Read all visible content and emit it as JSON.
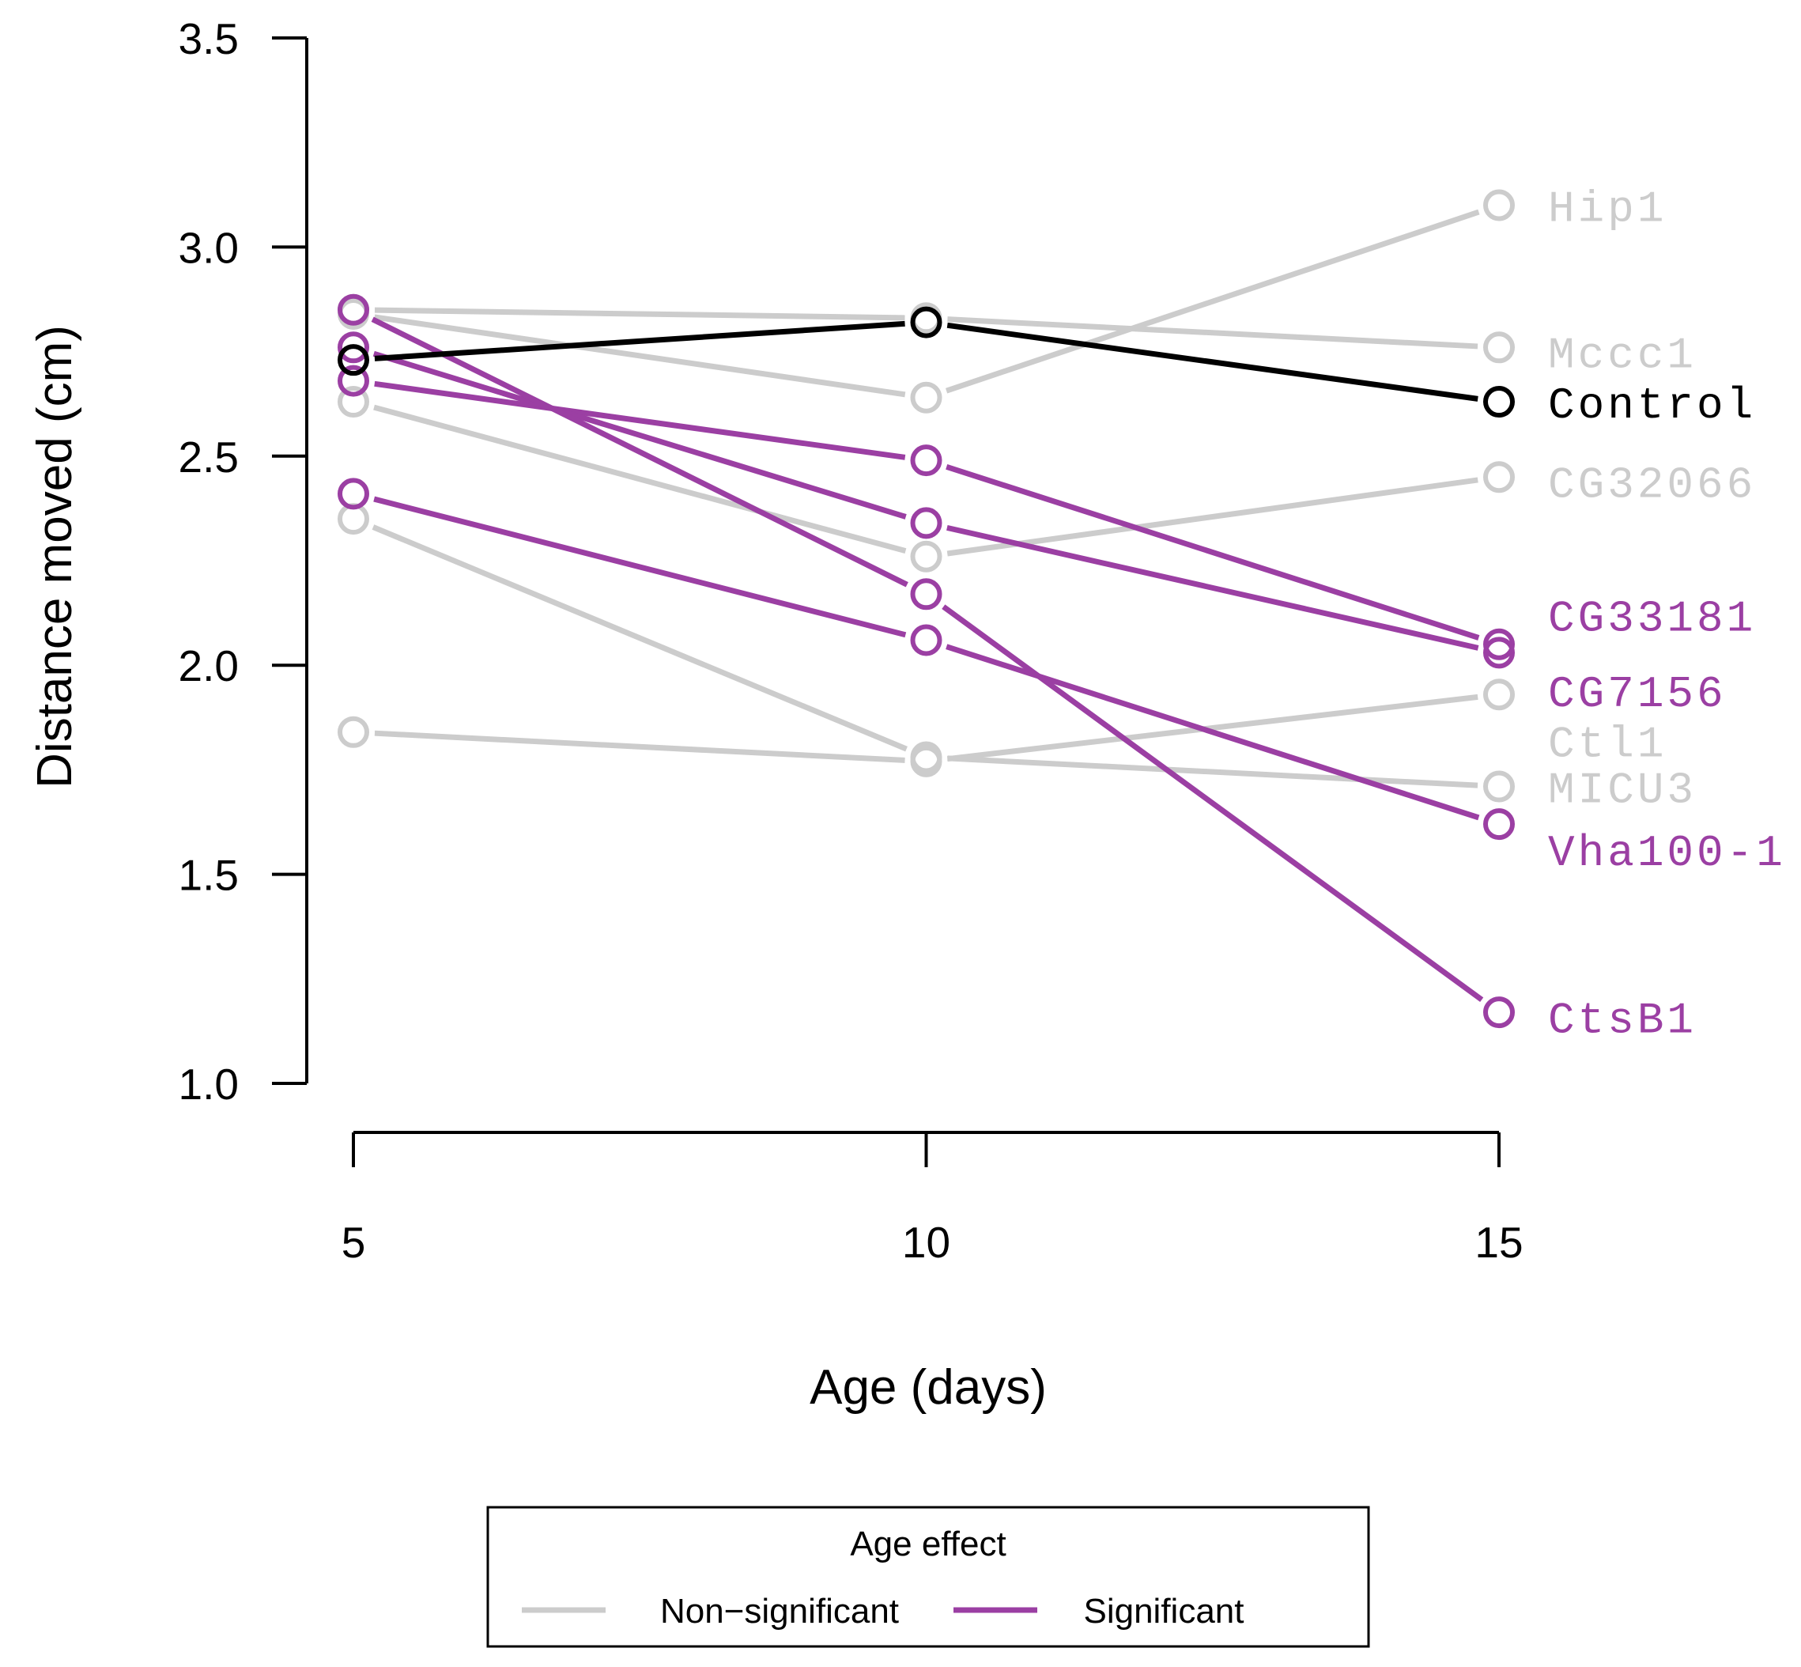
{
  "chart_data": {
    "type": "line",
    "title": "",
    "xlabel": "Age (days)",
    "ylabel": "Distance moved (cm)",
    "x": [
      5,
      10,
      15
    ],
    "x_tick_labels": [
      "5",
      "10",
      "15"
    ],
    "ylim": [
      1.0,
      3.5
    ],
    "y_ticks": [
      1.0,
      1.5,
      2.0,
      2.5,
      3.0,
      3.5
    ],
    "y_tick_labels": [
      "1.0",
      "1.5",
      "2.0",
      "2.5",
      "3.0",
      "3.5"
    ],
    "grid": false,
    "colors": {
      "non_significant": "#cccccc",
      "significant": "#9b3fa3",
      "control": "#000000"
    },
    "series": [
      {
        "name": "Hip1",
        "group": "non_significant",
        "values": [
          2.84,
          2.64,
          3.1
        ]
      },
      {
        "name": "Mccc1",
        "group": "non_significant",
        "values": [
          2.85,
          2.83,
          2.76
        ]
      },
      {
        "name": "CG32066",
        "group": "non_significant",
        "values": [
          2.63,
          2.26,
          2.45
        ]
      },
      {
        "name": "Ctl1",
        "group": "non_significant",
        "values": [
          1.84,
          1.77,
          1.93
        ]
      },
      {
        "name": "MICU3",
        "group": "non_significant",
        "values": [
          2.35,
          1.78,
          1.71
        ]
      },
      {
        "name": "CG33181",
        "group": "significant",
        "values": [
          2.68,
          2.49,
          2.05
        ]
      },
      {
        "name": "CG7156",
        "group": "significant",
        "values": [
          2.76,
          2.34,
          2.03
        ]
      },
      {
        "name": "Vha100-1",
        "group": "significant",
        "values": [
          2.41,
          2.06,
          1.62
        ]
      },
      {
        "name": "CtsB1",
        "group": "significant",
        "values": [
          2.85,
          2.17,
          1.17
        ]
      },
      {
        "name": "Control",
        "group": "control",
        "values": [
          2.73,
          2.82,
          2.63
        ]
      }
    ],
    "end_labels": [
      {
        "text": "Hip1",
        "group": "non_significant",
        "y": 3.1
      },
      {
        "text": "Mccc1",
        "group": "non_significant",
        "y": 2.75
      },
      {
        "text": "Control",
        "group": "control",
        "y": 2.63
      },
      {
        "text": "CG32066",
        "group": "non_significant",
        "y": 2.44
      },
      {
        "text": "CG33181",
        "group": "significant",
        "y": 2.12
      },
      {
        "text": "CG7156",
        "group": "significant",
        "y": 1.94
      },
      {
        "text": "Ctl1",
        "group": "non_significant",
        "y": 1.82
      },
      {
        "text": "MICU3",
        "group": "non_significant",
        "y": 1.71
      },
      {
        "text": "Vha100-1",
        "group": "significant",
        "y": 1.56
      },
      {
        "text": "CtsB1",
        "group": "significant",
        "y": 1.16
      }
    ],
    "legend": {
      "title": "Age effect",
      "position": "bottom-center",
      "entries": [
        {
          "label": "Non−significant",
          "group": "non_significant"
        },
        {
          "label": "Significant",
          "group": "significant"
        }
      ]
    }
  }
}
